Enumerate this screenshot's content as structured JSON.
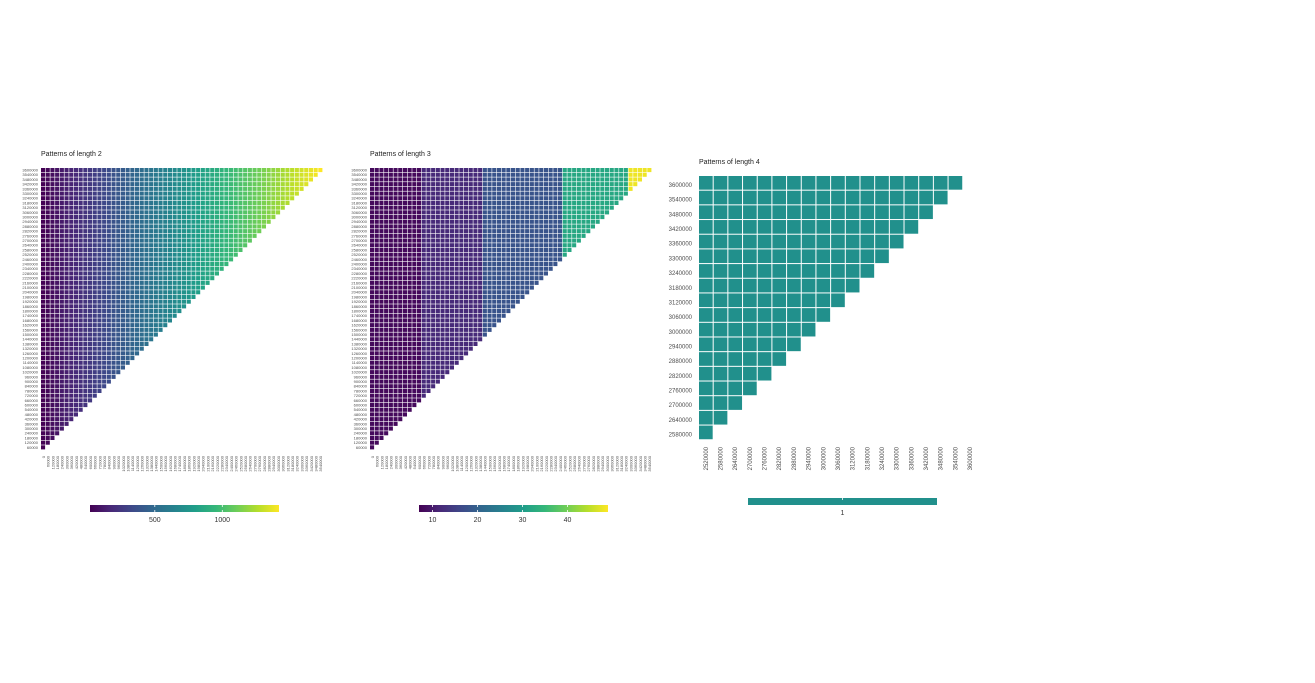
{
  "colors": {
    "viridis": [
      "#440154",
      "#482878",
      "#3e4989",
      "#31688e",
      "#26828e",
      "#1f9e89",
      "#35b779",
      "#6ece58",
      "#b5de2b",
      "#fde725"
    ],
    "single_fill": "#21908c",
    "tile_border": "#ffffff"
  },
  "chart_data": [
    {
      "type": "heatmap",
      "title": "Patterns of length 2",
      "grid": false,
      "legend": "bottom",
      "y_ticks": [
        60000,
        120000,
        180000,
        240000,
        300000,
        360000,
        420000,
        480000,
        540000,
        600000,
        660000,
        720000,
        780000,
        840000,
        900000,
        960000,
        1020000,
        1080000,
        1140000,
        1200000,
        1260000,
        1320000,
        1380000,
        1440000,
        1500000,
        1560000,
        1620000,
        1680000,
        1740000,
        1800000,
        1860000,
        1920000,
        1980000,
        2040000,
        2100000,
        2160000,
        2220000,
        2280000,
        2340000,
        2400000,
        2460000,
        2520000,
        2580000,
        2640000,
        2700000,
        2760000,
        2820000,
        2880000,
        2940000,
        3000000,
        3060000,
        3120000,
        3180000,
        3240000,
        3300000,
        3360000,
        3420000,
        3480000,
        3540000,
        3600000
      ],
      "x_ticks": [
        0,
        60000,
        120000,
        180000,
        240000,
        300000,
        360000,
        420000,
        480000,
        540000,
        600000,
        660000,
        720000,
        780000,
        840000,
        900000,
        960000,
        1020000,
        1080000,
        1140000,
        1200000,
        1260000,
        1320000,
        1380000,
        1440000,
        1500000,
        1560000,
        1620000,
        1680000,
        1740000,
        1800000,
        1860000,
        1920000,
        1980000,
        2040000,
        2100000,
        2160000,
        2220000,
        2280000,
        2340000,
        2400000,
        2460000,
        2520000,
        2580000,
        2640000,
        2700000,
        2760000,
        2820000,
        2880000,
        2940000,
        3000000,
        3060000,
        3120000,
        3180000,
        3240000,
        3300000,
        3360000,
        3420000,
        3480000,
        3540000
      ],
      "value_rule": "count ≈ 20 + 1400 × (column / 59), constant along each column",
      "colorbar": {
        "min": 20,
        "max": 1420,
        "ticks": [
          500,
          1000
        ]
      }
    },
    {
      "type": "heatmap",
      "title": "Patterns of length 3",
      "grid": false,
      "legend": "bottom",
      "y_ticks": [
        60000,
        120000,
        180000,
        240000,
        300000,
        360000,
        420000,
        480000,
        540000,
        600000,
        660000,
        720000,
        780000,
        840000,
        900000,
        960000,
        1020000,
        1080000,
        1140000,
        1200000,
        1260000,
        1320000,
        1380000,
        1440000,
        1500000,
        1560000,
        1620000,
        1680000,
        1740000,
        1800000,
        1860000,
        1920000,
        1980000,
        2040000,
        2100000,
        2160000,
        2220000,
        2280000,
        2340000,
        2400000,
        2460000,
        2520000,
        2580000,
        2640000,
        2700000,
        2760000,
        2820000,
        2880000,
        2940000,
        3000000,
        3060000,
        3120000,
        3180000,
        3240000,
        3300000,
        3360000,
        3420000,
        3480000,
        3540000,
        3600000
      ],
      "x_ticks": [
        0,
        60000,
        120000,
        180000,
        240000,
        300000,
        360000,
        420000,
        480000,
        540000,
        600000,
        660000,
        720000,
        780000,
        840000,
        900000,
        960000,
        1020000,
        1080000,
        1140000,
        1200000,
        1260000,
        1320000,
        1380000,
        1440000,
        1500000,
        1560000,
        1620000,
        1680000,
        1740000,
        1800000,
        1860000,
        1920000,
        1980000,
        2040000,
        2100000,
        2160000,
        2220000,
        2280000,
        2340000,
        2400000,
        2460000,
        2520000,
        2580000,
        2640000,
        2700000,
        2760000,
        2820000,
        2880000,
        2940000,
        3000000,
        3060000,
        3120000,
        3180000,
        3240000,
        3300000,
        3360000,
        3420000,
        3480000,
        3540000
      ],
      "value_bands": [
        {
          "columns": [
            0,
            10
          ],
          "value": 8
        },
        {
          "columns": [
            11,
            23
          ],
          "value": 12
        },
        {
          "columns": [
            24,
            40
          ],
          "value": 18
        },
        {
          "columns": [
            41,
            54
          ],
          "value": 32
        },
        {
          "columns": [
            55,
            59
          ],
          "value": 48
        }
      ],
      "colorbar": {
        "min": 7,
        "max": 49,
        "ticks": [
          10,
          20,
          30,
          40
        ]
      }
    },
    {
      "type": "heatmap",
      "title": "Patterns of length 4",
      "grid": false,
      "legend": "bottom",
      "y_ticks": [
        2580000,
        2640000,
        2700000,
        2760000,
        2820000,
        2880000,
        2940000,
        3000000,
        3060000,
        3120000,
        3180000,
        3240000,
        3300000,
        3360000,
        3420000,
        3480000,
        3540000,
        3600000
      ],
      "x_ticks": [
        2520000,
        2580000,
        2640000,
        2700000,
        2760000,
        2820000,
        2880000,
        2940000,
        3000000,
        3060000,
        3120000,
        3180000,
        3240000,
        3300000,
        3360000,
        3420000,
        3480000,
        3540000,
        3600000
      ],
      "constant_value": 1,
      "colorbar": {
        "ticks": [
          1
        ]
      }
    }
  ]
}
